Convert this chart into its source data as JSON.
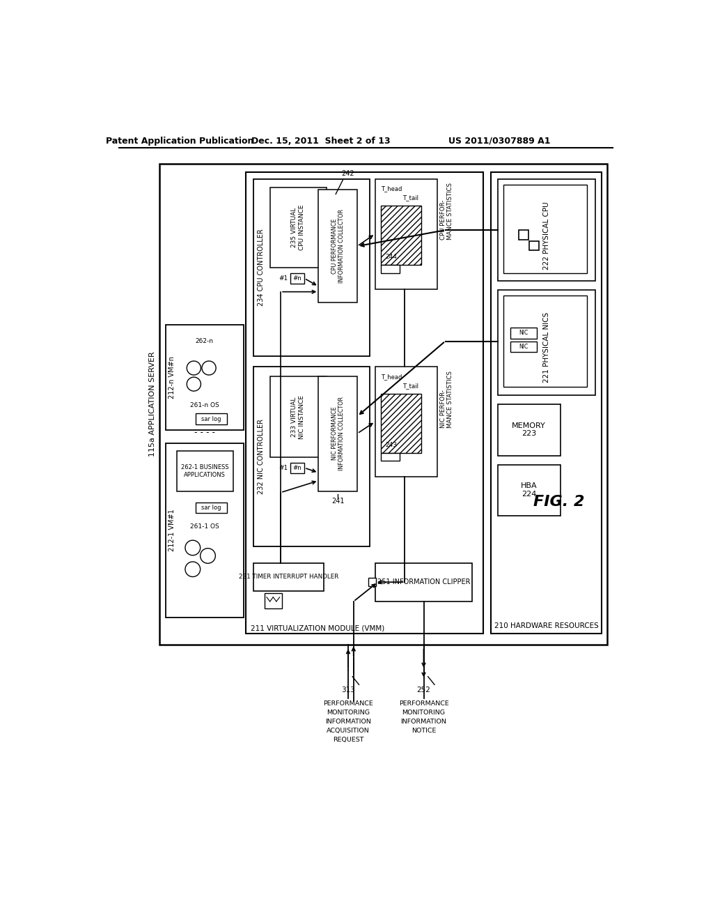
{
  "header_left": "Patent Application Publication",
  "header_mid": "Dec. 15, 2011  Sheet 2 of 13",
  "header_right": "US 2011/0307889 A1",
  "fig_label": "FIG. 2",
  "bg": "#ffffff",
  "lc": "#000000"
}
